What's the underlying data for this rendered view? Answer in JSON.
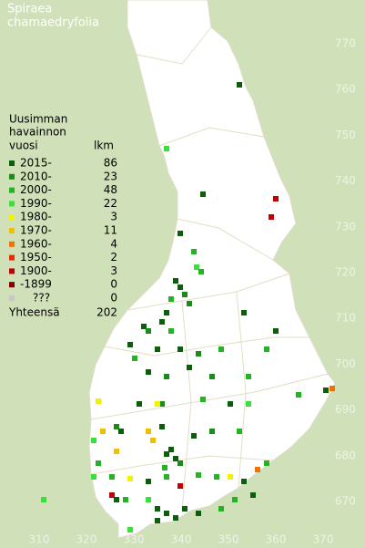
{
  "title": [
    "Spiraea",
    "chamaedryfolia"
  ],
  "legend": {
    "heading": [
      "Uusimman",
      "havainnon",
      "vuosi"
    ],
    "count_heading": "lkm",
    "rows": [
      {
        "label": "2015-",
        "count": 86,
        "color": "#0b5e0b"
      },
      {
        "label": "2010-",
        "count": 23,
        "color": "#198c19"
      },
      {
        "label": "2000-",
        "count": 48,
        "color": "#22b422"
      },
      {
        "label": "1990-",
        "count": 22,
        "color": "#3ae03a"
      },
      {
        "label": "1980-",
        "count": 3,
        "color": "#f2f200"
      },
      {
        "label": "1970-",
        "count": 11,
        "color": "#f0c000"
      },
      {
        "label": "1960-",
        "count": 4,
        "color": "#f07000"
      },
      {
        "label": "1950-",
        "count": 2,
        "color": "#e03000"
      },
      {
        "label": "1900-",
        "count": 3,
        "color": "#c00000"
      },
      {
        "label": "-1899",
        "count": 0,
        "color": "#800000"
      },
      {
        "label": "???",
        "count": 0,
        "color": "#c8c8c8"
      }
    ],
    "total_label": "Yhteensä",
    "total": 202
  },
  "axes": {
    "y_ticks": [
      770,
      760,
      750,
      740,
      730,
      720,
      710,
      700,
      690,
      680,
      670
    ],
    "x_ticks": [
      310,
      320,
      330,
      340,
      350,
      360,
      370
    ]
  }
}
